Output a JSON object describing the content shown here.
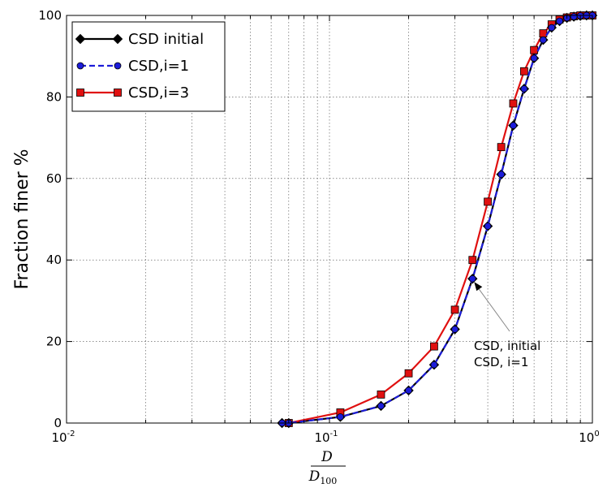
{
  "chart_data": {
    "type": "line",
    "title": "",
    "xlabel": {
      "numerator": "D",
      "denominator": "D",
      "denominator_sub": "100"
    },
    "ylabel": "Fraction finer %",
    "xscale": "log",
    "xlim": [
      0.01,
      1
    ],
    "ylim": [
      0,
      100
    ],
    "xticks": [
      {
        "base": "10",
        "exp": "-2",
        "value": 0.01
      },
      {
        "base": "10",
        "exp": "-1",
        "value": 0.1
      },
      {
        "base": "10",
        "exp": "0",
        "value": 1
      }
    ],
    "yticks": [
      "0",
      "20",
      "40",
      "60",
      "80",
      "100"
    ],
    "grid": true,
    "legend_position": "top-left",
    "series": [
      {
        "name": "CSD initial",
        "color": "#000000",
        "marker": "diamond",
        "linestyle": "solid",
        "x": [
          0.066,
          0.07,
          0.11,
          0.157,
          0.2,
          0.25,
          0.3,
          0.35,
          0.4,
          0.45,
          0.5,
          0.55,
          0.6,
          0.65,
          0.7,
          0.75,
          0.8,
          0.85,
          0.9,
          0.95,
          1.0
        ],
        "y": [
          0,
          0,
          1.5,
          4.2,
          8,
          14.3,
          23,
          35.4,
          48.3,
          61,
          73,
          82,
          89.5,
          94,
          97,
          98.6,
          99.4,
          99.7,
          99.9,
          100,
          100
        ]
      },
      {
        "name": "CSD,i=1",
        "color": "#1c1cd9",
        "marker": "circle",
        "linestyle": "dashed",
        "x": [
          0.066,
          0.07,
          0.11,
          0.157,
          0.2,
          0.25,
          0.3,
          0.35,
          0.4,
          0.45,
          0.5,
          0.55,
          0.6,
          0.65,
          0.7,
          0.75,
          0.8,
          0.85,
          0.9,
          0.95,
          1.0
        ],
        "y": [
          0,
          0,
          1.5,
          4.2,
          8,
          14.3,
          23,
          35.4,
          48.3,
          61,
          73,
          82,
          89.5,
          94,
          97,
          98.6,
          99.4,
          99.7,
          99.9,
          100,
          100
        ]
      },
      {
        "name": "CSD,i=3",
        "color": "#e01010",
        "marker": "square",
        "linestyle": "solid",
        "x": [
          0.07,
          0.11,
          0.157,
          0.2,
          0.25,
          0.3,
          0.35,
          0.4,
          0.45,
          0.5,
          0.55,
          0.6,
          0.65,
          0.7,
          0.75,
          0.8,
          0.85,
          0.9,
          0.95,
          1.0
        ],
        "y": [
          0,
          2.6,
          7,
          12.2,
          18.8,
          27.8,
          40,
          54.3,
          67.7,
          78.4,
          86.3,
          91.5,
          95.6,
          97.8,
          99,
          99.5,
          99.8,
          100,
          100,
          100
        ]
      }
    ],
    "annotation": {
      "lines": [
        "CSD, initial",
        "CSD, i=1"
      ],
      "arrow_target": {
        "x": 0.35,
        "y": 35.4
      }
    }
  }
}
